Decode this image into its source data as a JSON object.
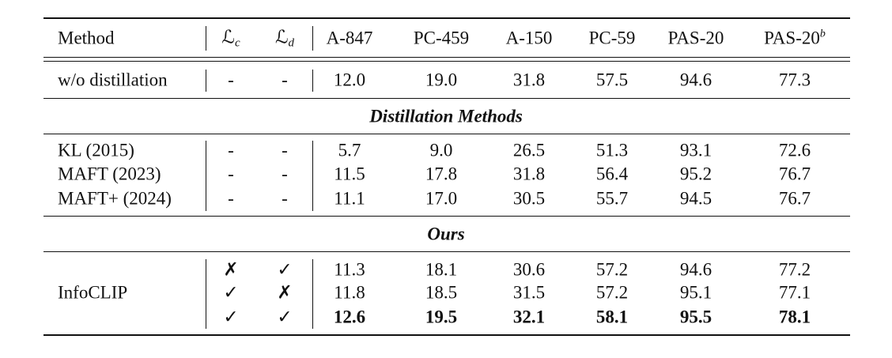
{
  "header": {
    "method": "Method",
    "lc": {
      "symbol": "ℒ",
      "sub": "c"
    },
    "ld": {
      "symbol": "ℒ",
      "sub": "d"
    },
    "datasets": [
      "A-847",
      "PC-459",
      "A-150",
      "PC-59",
      "PAS-20",
      {
        "text": "PAS-20",
        "sup": "b"
      }
    ]
  },
  "baseline": {
    "method": "w/o distillation",
    "lc": "-",
    "ld": "-",
    "values": [
      "12.0",
      "19.0",
      "31.8",
      "57.5",
      "94.6",
      "77.3"
    ]
  },
  "sections": [
    {
      "title": "Distillation Methods",
      "rows": [
        {
          "method": "KL (2015)",
          "lc": "-",
          "ld": "-",
          "values": [
            "5.7",
            "9.0",
            "26.5",
            "51.3",
            "93.1",
            "72.6"
          ]
        },
        {
          "method": "MAFT (2023)",
          "lc": "-",
          "ld": "-",
          "values": [
            "11.5",
            "17.8",
            "31.8",
            "56.4",
            "95.2",
            "76.7"
          ]
        },
        {
          "method": "MAFT+ (2024)",
          "lc": "-",
          "ld": "-",
          "values": [
            "11.1",
            "17.0",
            "30.5",
            "55.7",
            "94.5",
            "76.7"
          ]
        }
      ]
    },
    {
      "title": "Ours",
      "method": "InfoCLIP",
      "rows": [
        {
          "lc": "✗",
          "ld": "✓",
          "values": [
            "11.3",
            "18.1",
            "30.6",
            "57.2",
            "94.6",
            "77.2"
          ]
        },
        {
          "lc": "✓",
          "ld": "✗",
          "values": [
            "11.8",
            "18.5",
            "31.5",
            "57.2",
            "95.1",
            "77.1"
          ]
        },
        {
          "lc": "✓",
          "ld": "✓",
          "bold": true,
          "values": [
            "12.6",
            "19.5",
            "32.1",
            "58.1",
            "95.5",
            "78.1"
          ]
        }
      ]
    }
  ]
}
